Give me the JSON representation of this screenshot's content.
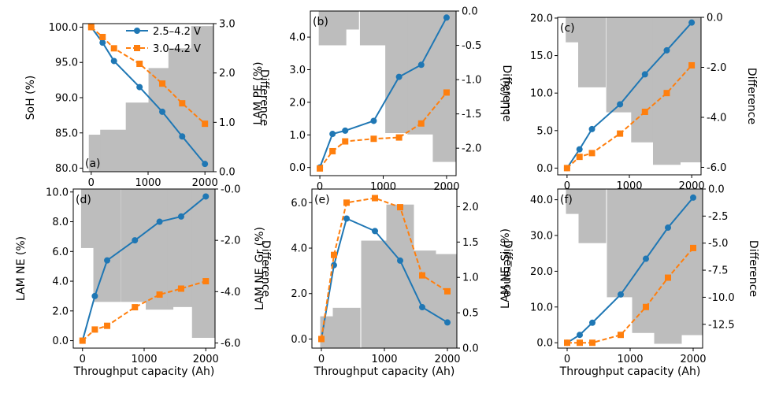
{
  "chart_data": {
    "type": "bar+line",
    "xlabel": "Throughput capacity (Ah)",
    "right_ylabel": "Difference",
    "legend": {
      "placement": "top-right of panel (a)",
      "entries": [
        {
          "label": "2.5–4.2 V",
          "color": "#1f77b4",
          "marker": "circle",
          "line": "solid"
        },
        {
          "label": "3.0–4.2 V",
          "color": "#ff7f0e",
          "marker": "square",
          "line": "dashed"
        }
      ]
    },
    "colors": {
      "series_a": "#1f77b4",
      "series_b": "#ff7f0e",
      "bar": "#bdbdbd",
      "bar_overlap": "#8c8c8c"
    },
    "x_values": [
      0,
      200,
      400,
      850,
      1250,
      1600,
      2000
    ],
    "bar_x": [
      200,
      400,
      850,
      1250,
      1600,
      2000
    ],
    "panels": [
      {
        "label": "(a)",
        "ylabel": "SoH (%)",
        "xlim": [
          -150,
          2150
        ],
        "xticks": [
          0,
          1000,
          2000
        ],
        "xtick_labels": [
          "0",
          "1000",
          "2000"
        ],
        "ylim": [
          79.5,
          100.5
        ],
        "yticks": [
          80,
          85,
          90,
          95,
          100
        ],
        "ytick_labels": [
          "80.0",
          "85.0",
          "90.0",
          "95.0",
          "100.0"
        ],
        "y2lim": [
          0,
          3.0
        ],
        "y2ticks": [
          0,
          1,
          2,
          3
        ],
        "y2tick_labels": [
          "0.0",
          "1.0",
          "2.0",
          "3.0"
        ],
        "bar_base": 0,
        "series": [
          {
            "name": "2.5–4.2 V",
            "values": [
              100.0,
              97.8,
              95.2,
              91.5,
              88.0,
              84.5,
              80.6
            ]
          },
          {
            "name": "3.0–4.2 V",
            "values": [
              100.0,
              98.6,
              97.0,
              94.8,
              92.0,
              89.2,
              86.3
            ]
          }
        ],
        "difference": [
          0.75,
          0.85,
          1.4,
          2.1,
          2.5,
          2.95
        ]
      },
      {
        "label": "(b)",
        "ylabel": "LAM PE (%)",
        "xlim": [
          -150,
          2150
        ],
        "xticks": [
          0,
          1000,
          2000
        ],
        "xtick_labels": [
          "0",
          "1000",
          "2000"
        ],
        "ylim": [
          -0.25,
          4.8
        ],
        "yticks": [
          0,
          1,
          2,
          3,
          4
        ],
        "ytick_labels": [
          "0.0",
          "1.0",
          "2.0",
          "3.0",
          "4.0"
        ],
        "y2lim": [
          -2.4,
          0
        ],
        "y2ticks": [
          0,
          -0.5,
          -1.0,
          -1.5,
          -2.0
        ],
        "y2tick_labels": [
          "0.0",
          "-0.5",
          "-1.0",
          "-1.5",
          "-2.0"
        ],
        "bar_base": 0,
        "series": [
          {
            "name": "2.5–4.2 V",
            "values": [
              0.0,
              1.03,
              1.13,
              1.43,
              2.78,
              3.15,
              4.6
            ]
          },
          {
            "name": "3.0–4.2 V",
            "values": [
              -0.03,
              0.5,
              0.8,
              0.88,
              0.92,
              1.35,
              2.3
            ]
          }
        ],
        "difference": [
          -0.5,
          -0.27,
          -0.5,
          -1.78,
          -1.8,
          -2.2
        ]
      },
      {
        "label": "(c)",
        "ylabel": "LLI (%)",
        "xlim": [
          -150,
          2150
        ],
        "xticks": [
          0,
          1000,
          2000
        ],
        "xtick_labels": [
          "0",
          "1000",
          "2000"
        ],
        "ylim": [
          -0.9,
          20.1
        ],
        "yticks": [
          0,
          5,
          10,
          15,
          20
        ],
        "ytick_labels": [
          "0.0",
          "5.0",
          "10.0",
          "15.0",
          "20.0"
        ],
        "y2lim": [
          -6.3,
          0
        ],
        "y2ticks": [
          0,
          -2,
          -4,
          -6
        ],
        "y2tick_labels": [
          "0.0",
          "-2.0",
          "-4.0",
          "-6.0"
        ],
        "bar_base": 0,
        "series": [
          {
            "name": "2.5–4.2 V",
            "values": [
              0.0,
              2.5,
              5.2,
              8.5,
              12.5,
              15.7,
              19.4
            ]
          },
          {
            "name": "3.0–4.2 V",
            "values": [
              0.0,
              1.5,
              2.0,
              4.6,
              7.5,
              10.0,
              13.7
            ]
          }
        ],
        "difference": [
          -1.0,
          -2.8,
          -3.8,
          -5.0,
          -5.9,
          -5.8
        ]
      },
      {
        "label": "(d)",
        "ylabel": "LAM NE (%)",
        "xlim": [
          -150,
          2150
        ],
        "xticks": [
          0,
          1000,
          2000
        ],
        "xtick_labels": [
          "0",
          "1000",
          "2000"
        ],
        "ylim": [
          -0.5,
          10.2
        ],
        "yticks": [
          0,
          2,
          4,
          6,
          8,
          10
        ],
        "ytick_labels": [
          "0.0",
          "2.0",
          "4.0",
          "6.0",
          "8.0",
          "10.0"
        ],
        "y2lim": [
          -6.2,
          0
        ],
        "y2ticks": [
          0,
          -2,
          -4,
          -6
        ],
        "y2tick_labels": [
          "-0.0",
          "-2.0",
          "-4.0",
          "-6.0"
        ],
        "bar_base": 0,
        "series": [
          {
            "name": "2.5–4.2 V",
            "values": [
              0.0,
              3.0,
              5.4,
              6.75,
              8.0,
              8.35,
              9.7
            ]
          },
          {
            "name": "3.0–4.2 V",
            "values": [
              0.0,
              0.75,
              1.0,
              2.25,
              3.1,
              3.5,
              4.0
            ]
          }
        ],
        "difference": [
          -2.3,
          -4.4,
          -4.4,
          -4.7,
          -4.6,
          -5.8
        ]
      },
      {
        "label": "(e)",
        "ylabel": "LAM NE_Gr (%)",
        "xlim": [
          -150,
          2150
        ],
        "xticks": [
          0,
          1000,
          2000
        ],
        "xtick_labels": [
          "0",
          "1000",
          "2000"
        ],
        "ylim": [
          -0.4,
          6.6
        ],
        "yticks": [
          0,
          2,
          4,
          6
        ],
        "ytick_labels": [
          "0.0",
          "2.0",
          "4.0",
          "6.0"
        ],
        "y2lim": [
          0,
          2.25
        ],
        "y2ticks": [
          0,
          0.5,
          1.0,
          1.5,
          2.0
        ],
        "y2tick_labels": [
          "0.0",
          "0.5",
          "1.0",
          "1.5",
          "2.0"
        ],
        "bar_base": 0,
        "series": [
          {
            "name": "2.5–4.2 V",
            "values": [
              0.0,
              3.25,
              5.3,
              4.75,
              3.45,
              1.4,
              0.73
            ]
          },
          {
            "name": "3.0–4.2 V",
            "values": [
              0.0,
              3.7,
              6.0,
              6.2,
              5.8,
              2.8,
              2.1
            ]
          }
        ],
        "difference": [
          0.45,
          0.57,
          1.52,
          2.03,
          1.38,
          1.33
        ]
      },
      {
        "label": "(f)",
        "ylabel": "LAM NE_Si (%)",
        "xlim": [
          -150,
          2150
        ],
        "xticks": [
          0,
          1000,
          2000
        ],
        "xtick_labels": [
          "0",
          "1000",
          "2000"
        ],
        "ylim": [
          -1.5,
          43.0
        ],
        "yticks": [
          0,
          10,
          20,
          30,
          40
        ],
        "ytick_labels": [
          "0.0",
          "10.0",
          "20.0",
          "30.0",
          "40.0"
        ],
        "y2lim": [
          -14.7,
          0
        ],
        "y2ticks": [
          0,
          -2.5,
          -5.0,
          -7.5,
          -10.0,
          -12.5
        ],
        "y2tick_labels": [
          "0.0",
          "-2.5",
          "-5.0",
          "-7.5",
          "-10.0",
          "-12.5"
        ],
        "bar_base": 0,
        "series": [
          {
            "name": "2.5–4.2 V",
            "values": [
              0.0,
              2.2,
              5.6,
              13.5,
              23.5,
              32.2,
              40.6
            ]
          },
          {
            "name": "3.0–4.2 V",
            "values": [
              0.0,
              0.0,
              0.0,
              2.2,
              10.0,
              18.2,
              26.5
            ]
          }
        ],
        "difference": [
          -2.3,
          -5.0,
          -10.0,
          -13.3,
          -14.3,
          -13.5
        ]
      }
    ]
  }
}
